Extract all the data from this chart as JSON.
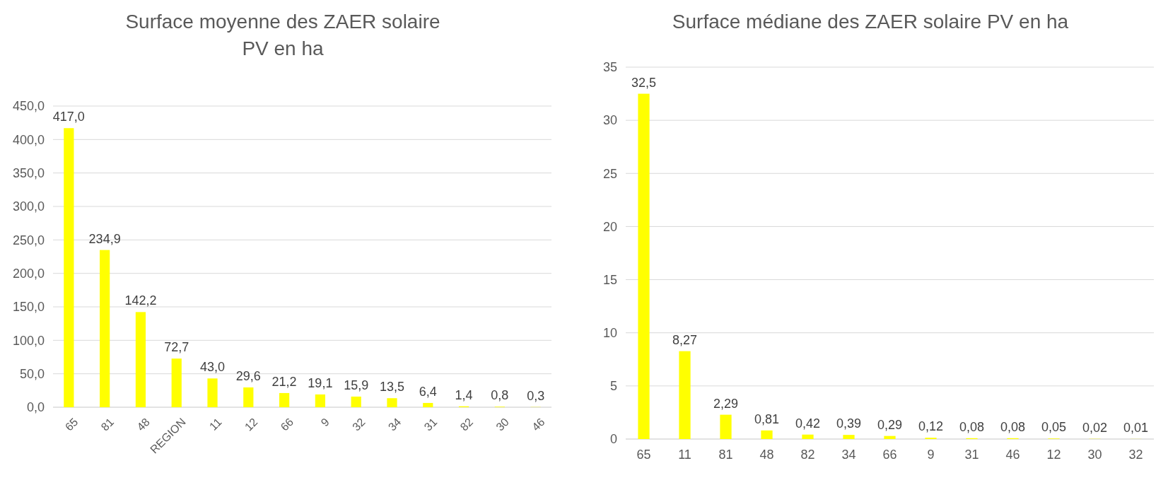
{
  "chart_data": [
    {
      "type": "bar",
      "title": "Surface moyenne des ZAER solaire PV en ha",
      "categories": [
        "65",
        "81",
        "48",
        "REGION",
        "11",
        "12",
        "66",
        "9",
        "32",
        "34",
        "31",
        "82",
        "30",
        "46"
      ],
      "values": [
        417.0,
        234.9,
        142.2,
        72.7,
        43.0,
        29.6,
        21.2,
        19.1,
        15.9,
        13.5,
        6.4,
        1.4,
        0.8,
        0.3
      ],
      "value_labels": [
        "417,0",
        "234,9",
        "142,2",
        "72,7",
        "43,0",
        "29,6",
        "21,2",
        "19,1",
        "15,9",
        "13,5",
        "6,4",
        "1,4",
        "0,8",
        "0,3"
      ],
      "color": "#ffff00",
      "ylim": [
        0,
        450
      ],
      "yticks": [
        {
          "value": 0,
          "label": "0,0"
        },
        {
          "value": 50,
          "label": "50,0"
        },
        {
          "value": 100,
          "label": "100,0"
        },
        {
          "value": 150,
          "label": "150,0"
        },
        {
          "value": 200,
          "label": "200,0"
        },
        {
          "value": 250,
          "label": "250,0"
        },
        {
          "value": 300,
          "label": "300,0"
        },
        {
          "value": 350,
          "label": "350,0"
        },
        {
          "value": 400,
          "label": "400,0"
        },
        {
          "value": 450,
          "label": "450,0"
        }
      ],
      "grid": "y"
    },
    {
      "type": "bar",
      "title": "Surface médiane des ZAER solaire PV en ha",
      "categories": [
        "65",
        "11",
        "81",
        "48",
        "82",
        "34",
        "66",
        "9",
        "31",
        "46",
        "12",
        "30",
        "32"
      ],
      "values": [
        32.5,
        8.27,
        2.29,
        0.81,
        0.42,
        0.39,
        0.29,
        0.12,
        0.08,
        0.08,
        0.05,
        0.02,
        0.01
      ],
      "value_labels": [
        "32,5",
        "8,27",
        "2,29",
        "0,81",
        "0,42",
        "0,39",
        "0,29",
        "0,12",
        "0,08",
        "0,08",
        "0,05",
        "0,02",
        "0,01"
      ],
      "color": "#ffff00",
      "ylim": [
        0,
        35
      ],
      "yticks": [
        0,
        5,
        10,
        15,
        20,
        25,
        30,
        35
      ],
      "grid": "y"
    }
  ]
}
